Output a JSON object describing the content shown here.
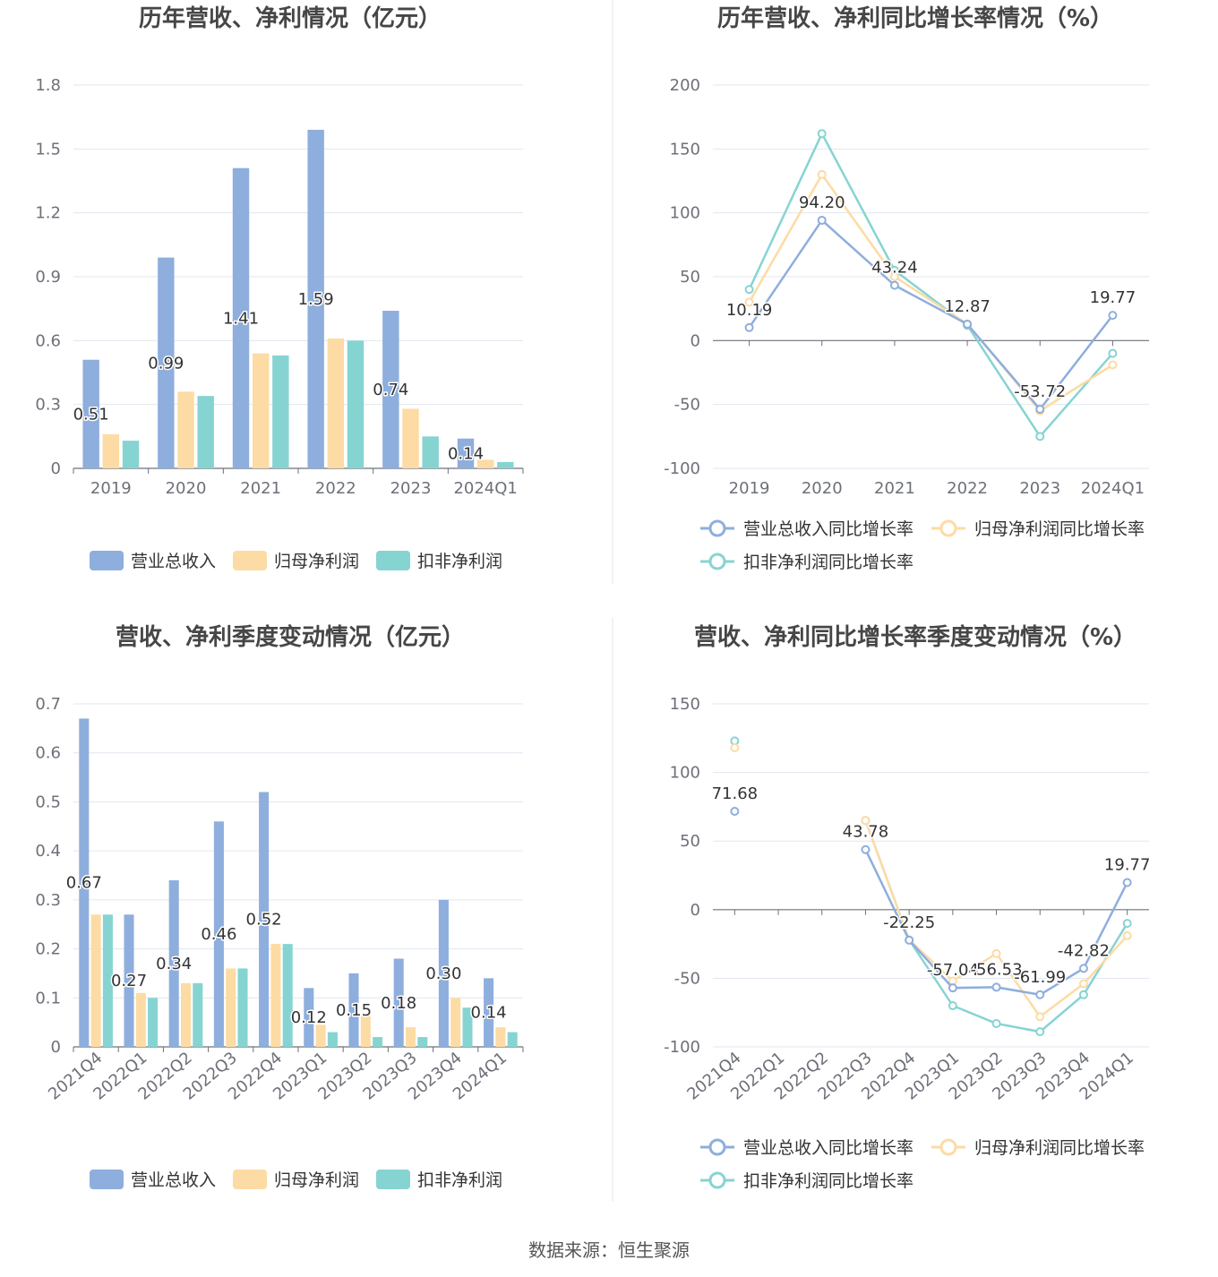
{
  "colors": {
    "revenue": "#8eaedd",
    "net_profit": "#fddba4",
    "deducted_profit": "#86d4d2",
    "grid": "#e0e6f1",
    "axis": "#6e7079"
  },
  "source": "数据来源：恒生聚源",
  "chart_data": [
    {
      "type": "bar",
      "title": "历年营收、净利情况（亿元）",
      "categories": [
        "2019",
        "2020",
        "2021",
        "2022",
        "2023",
        "2024Q1"
      ],
      "ylim": [
        0,
        1.8
      ],
      "yticks": [
        "0",
        "0.3",
        "0.6",
        "0.9",
        "1.2",
        "1.5",
        "1.8"
      ],
      "grid": true,
      "legend_position": "bottom",
      "series": [
        {
          "name": "营业总收入",
          "values": [
            0.51,
            0.99,
            1.41,
            1.59,
            0.74,
            0.14
          ],
          "labels": [
            "0.51",
            "0.99",
            "1.41",
            "1.59",
            "0.74",
            "0.14"
          ]
        },
        {
          "name": "归母净利润",
          "values": [
            0.16,
            0.36,
            0.54,
            0.61,
            0.28,
            0.04
          ]
        },
        {
          "name": "扣非净利润",
          "values": [
            0.13,
            0.34,
            0.53,
            0.6,
            0.15,
            0.03
          ]
        }
      ]
    },
    {
      "type": "line",
      "title": "历年营收、净利同比增长率情况（%）",
      "categories": [
        "2019",
        "2020",
        "2021",
        "2022",
        "2023",
        "2024Q1"
      ],
      "ylim": [
        -100,
        200
      ],
      "yticks": [
        "-100",
        "-50",
        "0",
        "50",
        "100",
        "150",
        "200"
      ],
      "grid": true,
      "legend_position": "bottom",
      "series": [
        {
          "name": "营业总收入同比增长率",
          "values": [
            10.19,
            94.2,
            43.24,
            12.87,
            -53.72,
            19.77
          ],
          "labels": [
            "10.19",
            "94.20",
            "43.24",
            "12.87",
            "-53.72",
            "19.77"
          ]
        },
        {
          "name": "归母净利润同比增长率",
          "values": [
            30,
            130,
            50,
            13,
            -55,
            -19
          ]
        },
        {
          "name": "扣非净利润同比增长率",
          "values": [
            40,
            162,
            55,
            12,
            -75,
            -10
          ]
        }
      ]
    },
    {
      "type": "bar",
      "title": "营收、净利季度变动情况（亿元）",
      "categories": [
        "2021Q4",
        "2022Q1",
        "2022Q2",
        "2022Q3",
        "2022Q4",
        "2023Q1",
        "2023Q2",
        "2023Q3",
        "2023Q4",
        "2024Q1"
      ],
      "ylim": [
        0,
        0.7
      ],
      "yticks": [
        "0",
        "0.1",
        "0.2",
        "0.3",
        "0.4",
        "0.5",
        "0.6",
        "0.7"
      ],
      "grid": true,
      "legend_position": "bottom",
      "series": [
        {
          "name": "营业总收入",
          "values": [
            0.67,
            0.27,
            0.34,
            0.46,
            0.52,
            0.12,
            0.15,
            0.18,
            0.3,
            0.14
          ],
          "labels": [
            "0.67",
            "0.27",
            "0.34",
            "0.46",
            "0.52",
            "0.12",
            "0.15",
            "0.18",
            "0.30",
            "0.14"
          ]
        },
        {
          "name": "归母净利润",
          "values": [
            0.27,
            0.11,
            0.13,
            0.16,
            0.21,
            0.045,
            0.063,
            0.04,
            0.1,
            0.04
          ]
        },
        {
          "name": "扣非净利润",
          "values": [
            0.27,
            0.1,
            0.13,
            0.16,
            0.21,
            0.03,
            0.02,
            0.02,
            0.08,
            0.03
          ]
        }
      ]
    },
    {
      "type": "line",
      "title": "营收、净利同比增长率季度变动情况（%）",
      "categories": [
        "2021Q4",
        "2022Q1",
        "2022Q2",
        "2022Q3",
        "2022Q4",
        "2023Q1",
        "2023Q2",
        "2023Q3",
        "2023Q4",
        "2024Q1"
      ],
      "ylim": [
        -100,
        150
      ],
      "yticks": [
        "-100",
        "-50",
        "0",
        "50",
        "100",
        "150"
      ],
      "grid": true,
      "legend_position": "bottom",
      "series": [
        {
          "name": "营业总收入同比增长率",
          "values": [
            71.68,
            null,
            null,
            43.78,
            -22.25,
            -57.04,
            -56.53,
            -61.99,
            -42.82,
            19.77
          ],
          "labels": [
            "71.68",
            "",
            "",
            "43.78",
            "-22.25",
            "-57.04",
            "-56.53",
            "-61.99",
            "-42.82",
            "19.77"
          ]
        },
        {
          "name": "归母净利润同比增长率",
          "values": [
            118,
            null,
            null,
            65,
            -22,
            -52,
            -32,
            -78,
            -54,
            -19
          ]
        },
        {
          "name": "扣非净利润同比增长率",
          "values": [
            123,
            null,
            null,
            65,
            -22,
            -70,
            -83,
            -89,
            -62,
            -10
          ]
        }
      ]
    }
  ]
}
